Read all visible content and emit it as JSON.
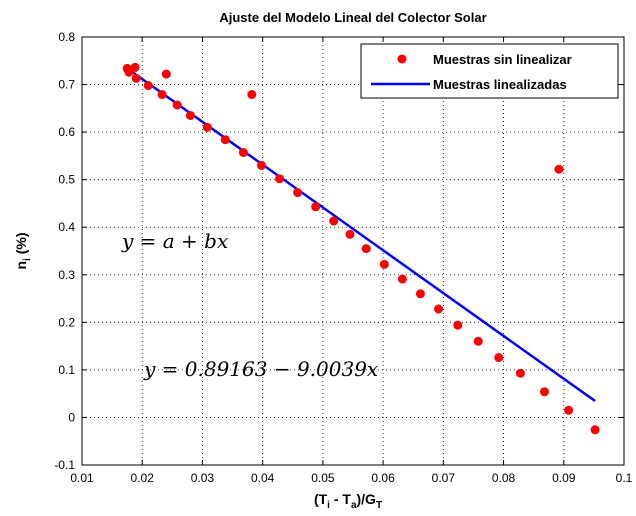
{
  "chart_data": {
    "type": "scatter",
    "title": "Ajuste del Modelo Lineal del Colector Solar",
    "xlabel": "(T_i - T_a)/G_T",
    "ylabel": "n_i (%)",
    "xlim": [
      0.01,
      0.1
    ],
    "ylim": [
      -0.1,
      0.8
    ],
    "xticks": [
      "0.01",
      "0.02",
      "0.03",
      "0.04",
      "0.05",
      "0.06",
      "0.07",
      "0.08",
      "0.09",
      "0.1"
    ],
    "yticks": [
      "-0.1",
      "0",
      "0.1",
      "0.2",
      "0.3",
      "0.4",
      "0.5",
      "0.6",
      "0.7",
      "0.8"
    ],
    "grid": true,
    "legend_position": "top-right",
    "series": [
      {
        "name": "Muestras sin linealizar",
        "kind": "points",
        "color": "#ff0000",
        "x": [
          0.0175,
          0.0178,
          0.0188,
          0.019,
          0.021,
          0.0233,
          0.024,
          0.0258,
          0.028,
          0.0308,
          0.0338,
          0.0368,
          0.0382,
          0.0398,
          0.0428,
          0.0458,
          0.0488,
          0.0518,
          0.0545,
          0.0572,
          0.0602,
          0.0632,
          0.0662,
          0.0692,
          0.0724,
          0.0758,
          0.0792,
          0.0828,
          0.0868,
          0.0892,
          0.0908,
          0.0952
        ],
        "y": [
          0.734,
          0.726,
          0.736,
          0.713,
          0.698,
          0.679,
          0.722,
          0.657,
          0.635,
          0.61,
          0.584,
          0.557,
          0.679,
          0.53,
          0.502,
          0.473,
          0.443,
          0.413,
          0.385,
          0.355,
          0.322,
          0.291,
          0.26,
          0.228,
          0.194,
          0.16,
          0.126,
          0.093,
          0.054,
          0.522,
          0.015,
          -0.026
        ]
      },
      {
        "name": "Muestras linealizadas",
        "kind": "line",
        "color": "#0000ff",
        "x": [
          0.0175,
          0.0952
        ],
        "y": [
          0.7341,
          0.0345
        ]
      }
    ],
    "annotations": [
      "y = a + bx",
      "y = 0.89163 − 9.0039x"
    ]
  }
}
